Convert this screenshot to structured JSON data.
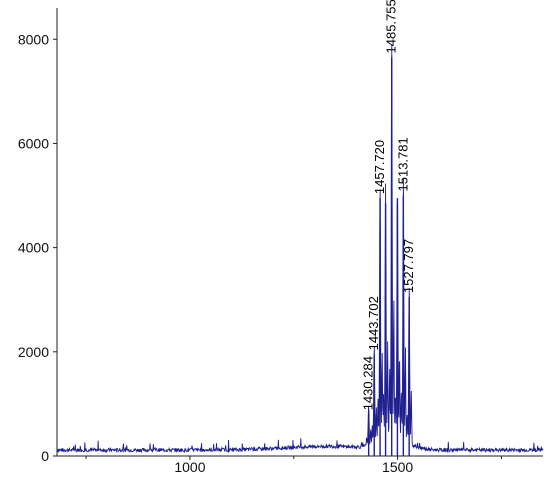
{
  "chart_data": {
    "type": "line",
    "title": "",
    "xlabel": "",
    "ylabel": "",
    "xlim": [
      680,
      1850
    ],
    "ylim": [
      0,
      8600
    ],
    "x_ticks": [
      1000,
      1500
    ],
    "y_ticks": [
      0,
      2000,
      4000,
      6000,
      8000
    ],
    "grid": false,
    "legend": "none",
    "colors": {
      "series": "#1f1f8f",
      "peak_label": "#000000",
      "axis": "#222222"
    },
    "peaks": [
      {
        "x": 1430.284,
        "y": 800
      },
      {
        "x": 1443.702,
        "y": 1950
      },
      {
        "x": 1457.72,
        "y": 4950
      },
      {
        "x": 1471.0,
        "y": 4850
      },
      {
        "x": 1485.755,
        "y": 7650
      },
      {
        "x": 1499.5,
        "y": 4950
      },
      {
        "x": 1513.781,
        "y": 5000
      },
      {
        "x": 1527.797,
        "y": 3050
      }
    ],
    "annotations": [
      {
        "label": "1430.284",
        "x": 1430.284,
        "y": 800
      },
      {
        "label": "1443.702",
        "x": 1443.702,
        "y": 1950
      },
      {
        "label": "1457.720",
        "x": 1457.72,
        "y": 4950
      },
      {
        "label": "1485.755",
        "x": 1485.755,
        "y": 7650
      },
      {
        "label": "1513.781",
        "x": 1513.781,
        "y": 5000
      },
      {
        "label": "1527.797",
        "x": 1527.797,
        "y": 3050
      }
    ]
  }
}
